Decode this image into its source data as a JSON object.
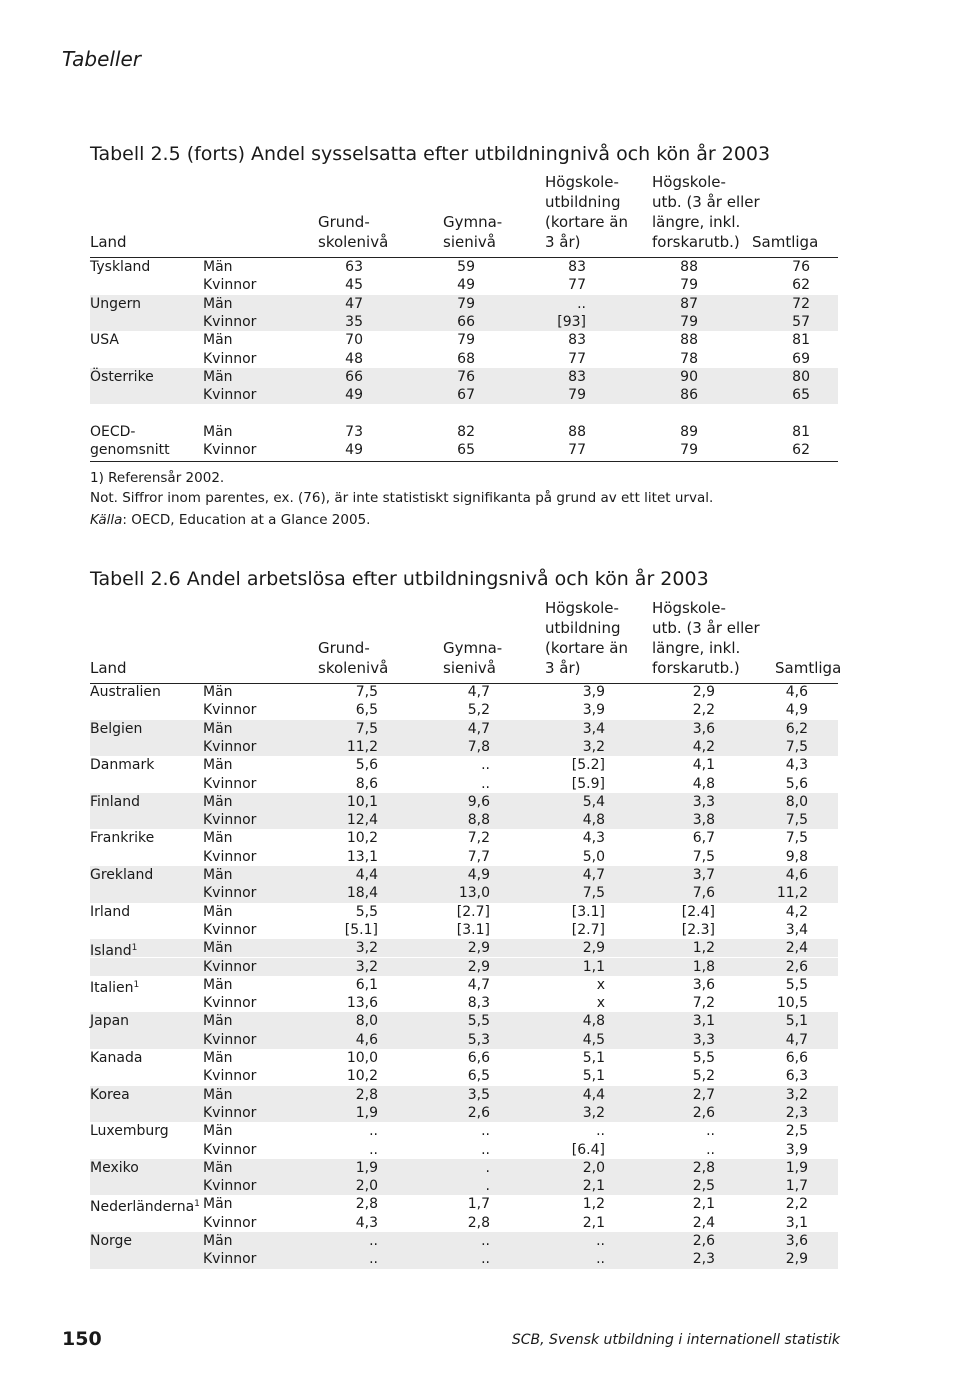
{
  "header": "Tabeller",
  "tables": [
    {
      "title": "Tabell 2.5  (forts) Andel sysselsatta efter utbildningnivå och kön år 2003",
      "headers": [
        "Land",
        "Grund-\nskolenivå",
        "Gymna-\nsienivå",
        "Högskole-\nutbildning\n(kortare än\n3 år)",
        "Högskole-\nutb. (3 år eller\nlängre, inkl.\nforskarutb.)",
        "Samtliga"
      ],
      "rows": [
        {
          "land": "Tyskland",
          "kon": "Män",
          "values": [
            "63",
            "59",
            "83",
            "88",
            "76"
          ]
        },
        {
          "kon": "Kvinnor",
          "values": [
            "45",
            "49",
            "77",
            "79",
            "62"
          ]
        },
        {
          "land": "Ungern",
          "kon": "Män",
          "values": [
            "47",
            "79",
            "..",
            "87",
            "72"
          ]
        },
        {
          "kon": "Kvinnor",
          "values": [
            "35",
            "66",
            "[93]",
            "79",
            "57"
          ]
        },
        {
          "land": "USA",
          "kon": "Män",
          "values": [
            "70",
            "79",
            "83",
            "88",
            "81"
          ]
        },
        {
          "kon": "Kvinnor",
          "values": [
            "48",
            "68",
            "77",
            "78",
            "69"
          ]
        },
        {
          "land": "Österrike",
          "kon": "Män",
          "values": [
            "66",
            "76",
            "83",
            "90",
            "80"
          ]
        },
        {
          "kon": "Kvinnor",
          "values": [
            "49",
            "67",
            "79",
            "86",
            "65"
          ]
        },
        {
          "land": "OECD-",
          "kon": "Män",
          "values": [
            "73",
            "82",
            "88",
            "89",
            "81"
          ]
        },
        {
          "land": "genomsnitt",
          "kon": "Kvinnor",
          "values": [
            "49",
            "65",
            "77",
            "79",
            "62"
          ]
        }
      ],
      "notes": {
        "footnote": "1) Referensår 2002.",
        "note": "Not. Siffror inom parentes, ex. (76), är inte statistiskt signifikanta på grund av ett litet urval.",
        "source_label": "Källa",
        "source_text": ": OECD, Education at a Glance 2005."
      }
    },
    {
      "title": "Tabell 2.6  Andel arbetslösa efter utbildningsnivå och kön år 2003",
      "headers": [
        "Land",
        "Grund-\nskolenivå",
        "Gymna-\nsienivå",
        "Högskole-\nutbildning\n(kortare än\n3 år)",
        "Högskole-\nutb. (3 år eller\nlängre, inkl.\nforskarutb.)",
        "Samtliga"
      ],
      "rows": [
        {
          "land": "Australien",
          "kon": "Män",
          "values": [
            "7,5",
            "4,7",
            "3,9",
            "2,9",
            "4,6"
          ]
        },
        {
          "kon": "Kvinnor",
          "values": [
            "6,5",
            "5,2",
            "3,9",
            "2,2",
            "4,9"
          ]
        },
        {
          "land": "Belgien",
          "kon": "Män",
          "values": [
            "7,5",
            "4,7",
            "3,4",
            "3,6",
            "6,2"
          ]
        },
        {
          "kon": "Kvinnor",
          "values": [
            "11,2",
            "7,8",
            "3,2",
            "4,2",
            "7,5"
          ]
        },
        {
          "land": "Danmark",
          "kon": "Män",
          "values": [
            "5,6",
            "..",
            "[5.2]",
            "4,1",
            "4,3"
          ]
        },
        {
          "kon": "Kvinnor",
          "values": [
            "8,6",
            "..",
            "[5.9]",
            "4,8",
            "5,6"
          ]
        },
        {
          "land": "Finland",
          "kon": "Män",
          "values": [
            "10,1",
            "9,6",
            "5,4",
            "3,3",
            "8,0"
          ]
        },
        {
          "kon": "Kvinnor",
          "values": [
            "12,4",
            "8,8",
            "4,8",
            "3,8",
            "7,5"
          ]
        },
        {
          "land": "Frankrike",
          "kon": "Män",
          "values": [
            "10,2",
            "7,2",
            "4,3",
            "6,7",
            "7,5"
          ]
        },
        {
          "kon": "Kvinnor",
          "values": [
            "13,1",
            "7,7",
            "5,0",
            "7,5",
            "9,8"
          ]
        },
        {
          "land": "Grekland",
          "kon": "Män",
          "values": [
            "4,4",
            "4,9",
            "4,7",
            "3,7",
            "4,6"
          ]
        },
        {
          "kon": "Kvinnor",
          "values": [
            "18,4",
            "13,0",
            "7,5",
            "7,6",
            "11,2"
          ]
        },
        {
          "land": "Irland",
          "kon": "Män",
          "values": [
            "5,5",
            "[2.7]",
            "[3.1]",
            "[2.4]",
            "4,2"
          ]
        },
        {
          "kon": "Kvinnor",
          "values": [
            "[5.1]",
            "[3.1]",
            "[2.7]",
            "[2.3]",
            "3,4"
          ]
        },
        {
          "land": "Island",
          "note": "1",
          "kon": "Män",
          "values": [
            "3,2",
            "2,9",
            "2,9",
            "1,2",
            "2,4"
          ]
        },
        {
          "kon": "Kvinnor",
          "values": [
            "3,2",
            "2,9",
            "1,1",
            "1,8",
            "2,6"
          ]
        },
        {
          "land": "Italien",
          "note": "1",
          "kon": "Män",
          "values": [
            "6,1",
            "4,7",
            "x",
            "3,6",
            "5,5"
          ]
        },
        {
          "kon": "Kvinnor",
          "values": [
            "13,6",
            "8,3",
            "x",
            "7,2",
            "10,5"
          ]
        },
        {
          "land": "Japan",
          "kon": "Män",
          "values": [
            "8,0",
            "5,5",
            "4,8",
            "3,1",
            "5,1"
          ]
        },
        {
          "kon": "Kvinnor",
          "values": [
            "4,6",
            "5,3",
            "4,5",
            "3,3",
            "4,7"
          ]
        },
        {
          "land": "Kanada",
          "kon": "Män",
          "values": [
            "10,0",
            "6,6",
            "5,1",
            "5,5",
            "6,6"
          ]
        },
        {
          "kon": "Kvinnor",
          "values": [
            "10,2",
            "6,5",
            "5,1",
            "5,2",
            "6,3"
          ]
        },
        {
          "land": "Korea",
          "kon": "Män",
          "values": [
            "2,8",
            "3,5",
            "4,4",
            "2,7",
            "3,2"
          ]
        },
        {
          "kon": "Kvinnor",
          "values": [
            "1,9",
            "2,6",
            "3,2",
            "2,6",
            "2,3"
          ]
        },
        {
          "land": "Luxemburg",
          "kon": "Män",
          "values": [
            "..",
            "..",
            "..",
            "..",
            "2,5"
          ]
        },
        {
          "kon": "Kvinnor",
          "values": [
            "..",
            "..",
            "[6.4]",
            "..",
            "3,9"
          ]
        },
        {
          "land": "Mexiko",
          "kon": "Män",
          "values": [
            "1,9",
            ".",
            "2,0",
            "2,8",
            "1,9"
          ]
        },
        {
          "kon": "Kvinnor",
          "values": [
            "2,0",
            ".",
            "2,1",
            "2,5",
            "1,7"
          ]
        },
        {
          "land": "Nederländerna",
          "note": "1",
          "kon": "Män",
          "values": [
            "2,8",
            "1,7",
            "1,2",
            "2,1",
            "2,2"
          ]
        },
        {
          "kon": "Kvinnor",
          "values": [
            "4,3",
            "2,8",
            "2,1",
            "2,4",
            "3,1"
          ]
        },
        {
          "land": "Norge",
          "kon": "Män",
          "values": [
            "..",
            "..",
            "..",
            "2,6",
            "3,6"
          ]
        },
        {
          "kon": "Kvinnor",
          "values": [
            "..",
            "..",
            "..",
            "2,3",
            "2,9"
          ]
        }
      ]
    }
  ],
  "footer": {
    "page": "150",
    "source": "SCB, Svensk utbildning i internationell statistik"
  }
}
